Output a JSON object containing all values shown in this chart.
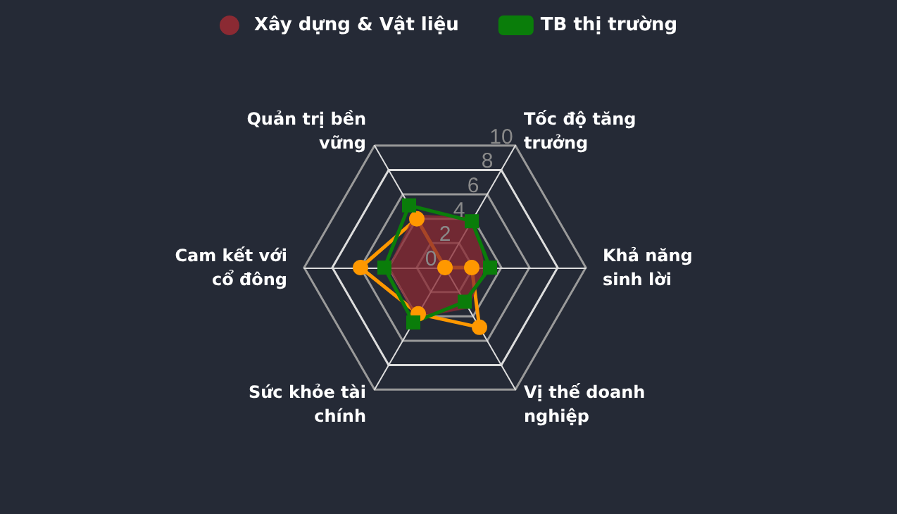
{
  "chart_data": {
    "type": "radar",
    "categories": [
      "Tốc độ tăng trưởng",
      "Khả năng sinh lời",
      "Vị thế doanh nghiệp",
      "Sức khỏe tài chính",
      "Cam kết với cổ đông",
      "Quản trị bền vững"
    ],
    "ylim": [
      0,
      10
    ],
    "yticks": [
      0,
      2,
      4,
      6,
      8,
      10
    ],
    "legend": "top",
    "grid": true,
    "series": [
      {
        "color": "#ff9800",
        "marker": "circle",
        "values": [
          0,
          1.9,
          4.9,
          3.8,
          6.0,
          4.0
        ]
      },
      {
        "name": "Xây dựng & Vật liệu",
        "type": "area",
        "color": "#8b2a33",
        "marker": "none",
        "values": [
          4.1,
          2.8,
          3.3,
          4.1,
          4.0,
          4.3
        ]
      },
      {
        "name": "TB thị trường",
        "color": "#0a7d0a",
        "marker": "square",
        "values": [
          3.8,
          3.2,
          2.8,
          4.5,
          4.3,
          5.1
        ]
      }
    ]
  }
}
